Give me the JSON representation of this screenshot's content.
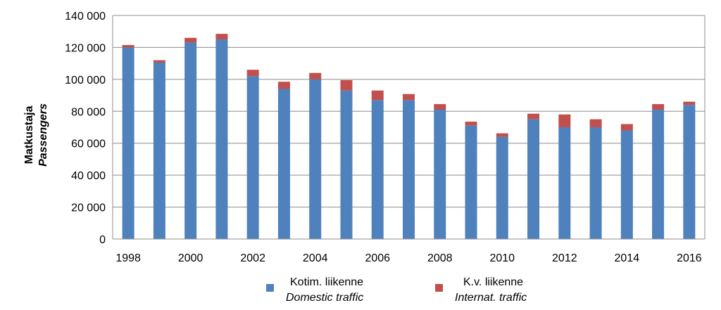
{
  "chart_data": {
    "type": "bar",
    "stacked": true,
    "x": [
      1998,
      1999,
      2000,
      2001,
      2002,
      2003,
      2004,
      2005,
      2006,
      2007,
      2008,
      2009,
      2010,
      2011,
      2012,
      2013,
      2014,
      2015,
      2016
    ],
    "x_tick_labels": [
      "1998",
      "2000",
      "2002",
      "2004",
      "2006",
      "2008",
      "2010",
      "2012",
      "2014",
      "2016"
    ],
    "series": [
      {
        "name": "Kotim. liikenne",
        "name_en": "Domestic traffic",
        "color": "#4F81BD",
        "values": [
          120000,
          110500,
          123000,
          125000,
          102000,
          94000,
          100000,
          93000,
          87000,
          87000,
          81000,
          71000,
          64000,
          75000,
          70000,
          70000,
          68000,
          81000,
          84000
        ]
      },
      {
        "name": "K.v. liikenne",
        "name_en": "Internat. traffic",
        "color": "#C0504D",
        "values": [
          1500,
          1500,
          3000,
          3500,
          4000,
          4500,
          4000,
          6500,
          6000,
          3800,
          3500,
          2500,
          2200,
          3500,
          8000,
          5000,
          4000,
          3500,
          2000
        ]
      }
    ],
    "ylabel": "Matkustaja",
    "ylabel_en": "Passengers",
    "ylim": [
      0,
      140000
    ],
    "y_ticks": [
      "0",
      "20 000",
      "40 000",
      "60 000",
      "80 000",
      "100 000",
      "120 000",
      "140 000"
    ],
    "y_tick_values": [
      0,
      20000,
      40000,
      60000,
      80000,
      100000,
      120000,
      140000
    ],
    "grid": true,
    "legend_position": "bottom"
  }
}
